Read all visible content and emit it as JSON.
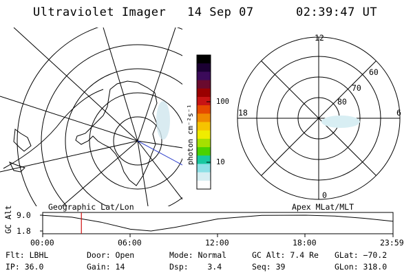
{
  "header": {
    "title": "Ultraviolet Imager",
    "date": "14 Sep 07",
    "time": "02:39:47 UT"
  },
  "colorbar": {
    "unit_label": "photon cm⁻²s⁻¹",
    "ticks": [
      "100",
      "10"
    ],
    "colors": [
      "#000000",
      "#1b0033",
      "#3b0a5a",
      "#6a0a2e",
      "#9a0000",
      "#c81414",
      "#e64a00",
      "#f08a00",
      "#f6c400",
      "#f0ec00",
      "#a6e000",
      "#4ad200",
      "#18c8a0",
      "#8de0e6",
      "#d6eef2",
      "#ffffff"
    ]
  },
  "polar_plot": {
    "mlt_labels": {
      "top": "12",
      "left": "18",
      "right": "6",
      "bottom": "0"
    },
    "lat_labels": [
      "60",
      "70",
      "80"
    ]
  },
  "footer": {
    "left_label": "Geographic Lat/Lon",
    "right_label": "Apex MLat/MLT",
    "ylabel": "GC Alt",
    "y_ticks": [
      "9.0",
      "1.8"
    ],
    "x_ticks": [
      "00:00",
      "06:00",
      "12:00",
      "18:00",
      "23:59"
    ],
    "current_time_marker": "02:39",
    "info": [
      [
        "Flt: LBHL",
        "Door: Open",
        "Mode: Normal",
        "GC Alt: 7.4 Re",
        "GLat: −70.2"
      ],
      [
        "IP: 36.0",
        "Gain: 14",
        "Dsp:    3.4",
        "Seq: 39",
        "GLon: 318.0"
      ]
    ]
  },
  "chart_data": {
    "type": "line",
    "xlabel": "",
    "ylabel": "GC Alt",
    "x_ticks": [
      "00:00",
      "06:00",
      "12:00",
      "18:00",
      "23:59"
    ],
    "y_ticks": [
      9.0,
      1.8
    ],
    "ylim": [
      1.8,
      9.0
    ],
    "series": [
      {
        "x": [
          "00:00",
          "02:00",
          "04:00",
          "06:00",
          "07:25",
          "09:00",
          "12:00",
          "15:00",
          "18:00",
          "20:00",
          "22:00",
          "23:59"
        ],
        "values": [
          8.9,
          8.1,
          5.8,
          2.6,
          1.8,
          3.4,
          7.3,
          8.9,
          9.0,
          8.6,
          7.6,
          6.2
        ]
      }
    ],
    "marker_x": "02:39"
  }
}
